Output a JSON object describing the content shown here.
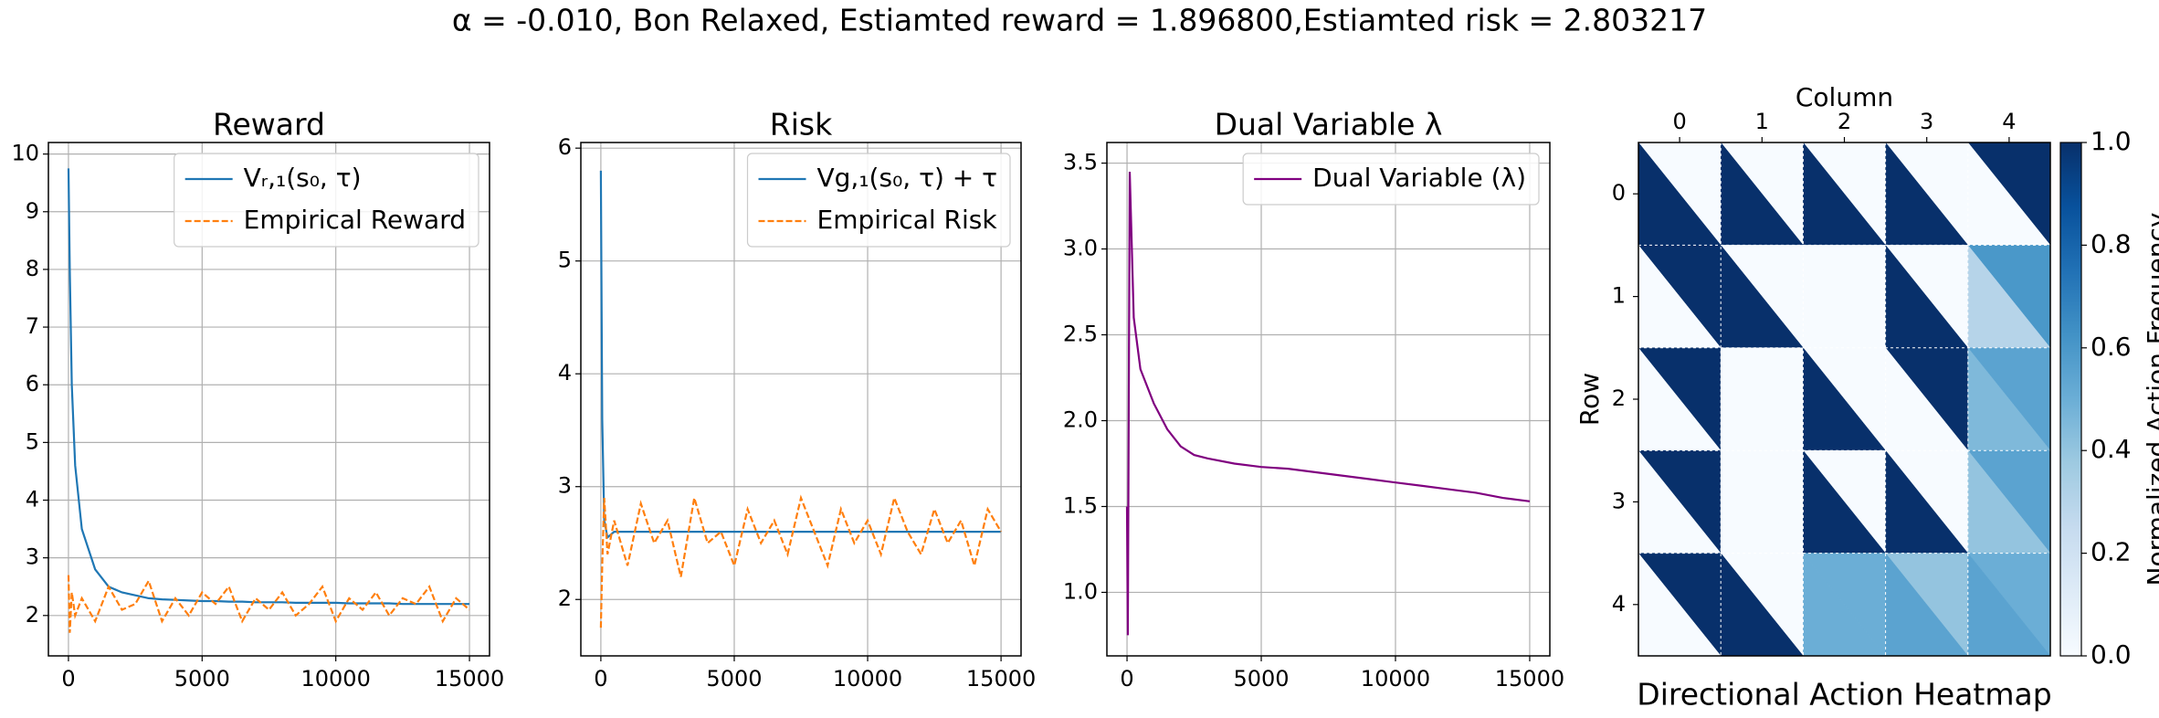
{
  "title": "α = -0.010, Bon Relaxed, Estiamted reward = 1.896800,Estiamted risk = 2.803217",
  "chart_data": [
    {
      "type": "line",
      "title": "Reward",
      "grid": true,
      "legend": "upper right",
      "xlim": [
        -750,
        15750
      ],
      "xticks": [
        0,
        5000,
        10000,
        15000
      ],
      "ylim": [
        1.3,
        10.2
      ],
      "yticks": [
        2,
        3,
        4,
        5,
        6,
        7,
        8,
        9,
        10
      ],
      "x": [
        0,
        50,
        125,
        250,
        500,
        1000,
        1500,
        2000,
        2500,
        3000,
        3500,
        4000,
        4500,
        5000,
        5500,
        6000,
        6500,
        7000,
        7500,
        8000,
        8500,
        9000,
        9500,
        10000,
        10500,
        11000,
        11500,
        12000,
        12500,
        13000,
        13500,
        14000,
        14500,
        15000
      ],
      "series": [
        {
          "name": "Vᵣ,₁(s₀, τ)",
          "color": "#1f77b4",
          "linestyle": "solid",
          "values": [
            9.75,
            8.0,
            6.0,
            4.6,
            3.5,
            2.8,
            2.5,
            2.4,
            2.35,
            2.3,
            2.28,
            2.27,
            2.26,
            2.25,
            2.25,
            2.24,
            2.24,
            2.23,
            2.23,
            2.23,
            2.22,
            2.22,
            2.22,
            2.22,
            2.21,
            2.21,
            2.21,
            2.21,
            2.2,
            2.2,
            2.2,
            2.2,
            2.2,
            2.2
          ]
        },
        {
          "name": "Empirical Reward",
          "color": "#ff7f0e",
          "linestyle": "dashed",
          "values": [
            2.7,
            1.7,
            2.4,
            2.0,
            2.3,
            1.9,
            2.5,
            2.1,
            2.2,
            2.6,
            1.9,
            2.3,
            2.0,
            2.4,
            2.2,
            2.5,
            1.9,
            2.3,
            2.1,
            2.4,
            2.0,
            2.2,
            2.5,
            1.9,
            2.3,
            2.1,
            2.4,
            2.0,
            2.3,
            2.2,
            2.5,
            1.9,
            2.3,
            2.1
          ]
        }
      ]
    },
    {
      "type": "line",
      "title": "Risk",
      "grid": true,
      "legend": "upper right",
      "xlim": [
        -750,
        15750
      ],
      "xticks": [
        0,
        5000,
        10000,
        15000
      ],
      "ylim": [
        1.5,
        6.05
      ],
      "yticks": [
        2,
        3,
        4,
        5,
        6
      ],
      "x": [
        0,
        50,
        125,
        250,
        500,
        1000,
        1500,
        2000,
        2500,
        3000,
        3500,
        4000,
        4500,
        5000,
        5500,
        6000,
        6500,
        7000,
        7500,
        8000,
        8500,
        9000,
        9500,
        10000,
        10500,
        11000,
        11500,
        12000,
        12500,
        13000,
        13500,
        14000,
        14500,
        15000
      ],
      "series": [
        {
          "name": "Vg,₁(s₀, τ) + τ",
          "color": "#1f77b4",
          "linestyle": "solid",
          "values": [
            5.8,
            3.6,
            2.7,
            2.55,
            2.6,
            2.6,
            2.6,
            2.6,
            2.6,
            2.6,
            2.6,
            2.6,
            2.6,
            2.6,
            2.6,
            2.6,
            2.6,
            2.6,
            2.6,
            2.6,
            2.6,
            2.6,
            2.6,
            2.6,
            2.6,
            2.6,
            2.6,
            2.6,
            2.6,
            2.6,
            2.6,
            2.6,
            2.6,
            2.6
          ]
        },
        {
          "name": "Empirical Risk",
          "color": "#ff7f0e",
          "linestyle": "dashed",
          "values": [
            1.75,
            2.3,
            2.9,
            2.4,
            2.7,
            2.3,
            2.85,
            2.5,
            2.7,
            2.2,
            2.9,
            2.5,
            2.6,
            2.3,
            2.8,
            2.5,
            2.7,
            2.4,
            2.9,
            2.6,
            2.3,
            2.8,
            2.5,
            2.7,
            2.4,
            2.9,
            2.6,
            2.4,
            2.8,
            2.5,
            2.7,
            2.3,
            2.8,
            2.6
          ]
        }
      ]
    },
    {
      "type": "line",
      "title": "Dual Variable λ",
      "grid": true,
      "legend": "upper right",
      "xlim": [
        -750,
        15750
      ],
      "xticks": [
        0,
        5000,
        10000,
        15000
      ],
      "ylim": [
        0.63,
        3.62
      ],
      "yticks": [
        {
          "value": 1.0,
          "label": "1.0"
        },
        {
          "value": 1.5,
          "label": "1.5"
        },
        {
          "value": 2.0,
          "label": "2.0"
        },
        {
          "value": 2.5,
          "label": "2.5"
        },
        {
          "value": 3.0,
          "label": "3.0"
        },
        {
          "value": 3.5,
          "label": "3.5"
        }
      ],
      "x": [
        0,
        30,
        100,
        250,
        500,
        1000,
        1500,
        2000,
        2500,
        3000,
        4000,
        5000,
        6000,
        7000,
        8000,
        9000,
        10000,
        11000,
        12000,
        13000,
        14000,
        15000
      ],
      "series": [
        {
          "name": "Dual Variable (λ)",
          "color": "#800080",
          "linestyle": "solid",
          "values": [
            1.5,
            0.75,
            3.45,
            2.6,
            2.3,
            2.1,
            1.95,
            1.85,
            1.8,
            1.78,
            1.75,
            1.73,
            1.72,
            1.7,
            1.68,
            1.66,
            1.64,
            1.62,
            1.6,
            1.58,
            1.55,
            1.53
          ]
        }
      ]
    },
    {
      "type": "heatmap",
      "title": "Directional Action Heatmap",
      "xlabel": "Column",
      "ylabel": "Row",
      "columns": [
        "0",
        "1",
        "2",
        "3",
        "4"
      ],
      "rows": [
        "0",
        "1",
        "2",
        "3",
        "4"
      ],
      "triangles": [
        [
          [
            0,
            1
          ],
          [
            0,
            1
          ],
          [
            0,
            1
          ],
          [
            0,
            1
          ],
          [
            1,
            0
          ]
        ],
        [
          [
            1,
            0
          ],
          [
            0,
            1
          ],
          [
            0,
            0
          ],
          [
            0,
            1
          ],
          [
            0.6,
            0.3
          ]
        ],
        [
          [
            1,
            0
          ],
          [
            0,
            0
          ],
          [
            0,
            1
          ],
          [
            1,
            0
          ],
          [
            0.55,
            0.45
          ]
        ],
        [
          [
            1,
            0
          ],
          [
            0,
            0
          ],
          [
            0,
            1
          ],
          [
            0,
            1
          ],
          [
            0.55,
            0.4
          ]
        ],
        [
          [
            1,
            0
          ],
          [
            0,
            1
          ],
          [
            0.5,
            0.5
          ],
          [
            0.4,
            0.55
          ],
          [
            0.5,
            0.55
          ]
        ]
      ],
      "cmap": [
        "#f7fbff",
        "#deebf7",
        "#c6dbef",
        "#9ecae1",
        "#6baed6",
        "#4292c6",
        "#2171b5",
        "#08519c",
        "#08306b"
      ],
      "clim": [
        0,
        1
      ],
      "colorbar_label": "Normalized Action Frequency",
      "colorbar_ticks": [
        {
          "value": 0,
          "label": "0.0"
        },
        {
          "value": 0.2,
          "label": "0.2"
        },
        {
          "value": 0.4,
          "label": "0.4"
        },
        {
          "value": 0.6,
          "label": "0.6"
        },
        {
          "value": 0.8,
          "label": "0.8"
        },
        {
          "value": 1,
          "label": "1.0"
        }
      ]
    }
  ]
}
